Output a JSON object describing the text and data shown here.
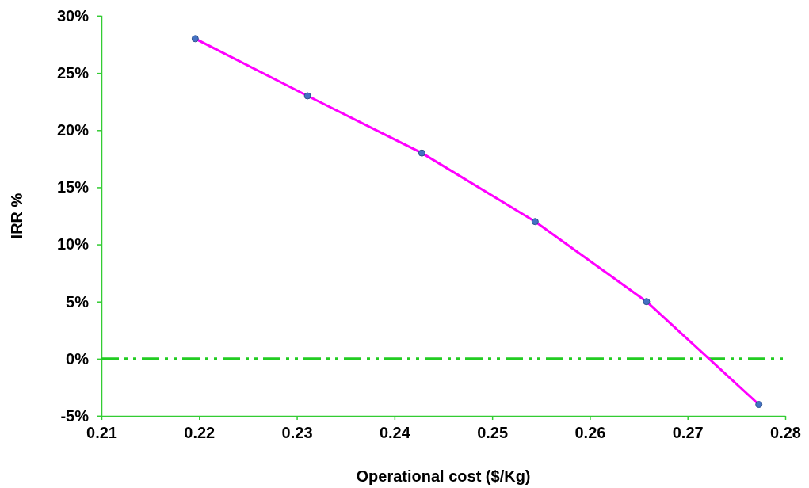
{
  "chart_data": {
    "type": "line",
    "xlabel": "Operational cost ($/Kg)",
    "ylabel": "IRR %",
    "x": [
      0.2196,
      0.2311,
      0.2428,
      0.2544,
      0.2658,
      0.2773
    ],
    "series": [
      {
        "color": "#ff00ff",
        "values": [
          28,
          23,
          18,
          12,
          5,
          -4
        ],
        "marker": "none"
      },
      {
        "type": "scatter",
        "color": "#4472c4",
        "values": [
          28,
          23,
          18,
          12,
          5,
          -4
        ]
      }
    ],
    "marker": "circle",
    "line_style": "solid",
    "grid": false,
    "xlim": [
      0.21,
      0.28
    ],
    "xticks": [
      {
        "value": 0.21,
        "label": "0.21"
      },
      {
        "value": 0.22,
        "label": "0.22"
      },
      {
        "value": 0.23,
        "label": "0.23"
      },
      {
        "value": 0.24,
        "label": "0.24"
      },
      {
        "value": 0.25,
        "label": "0.25"
      },
      {
        "value": 0.26,
        "label": "0.26"
      },
      {
        "value": 0.27,
        "label": "0.27"
      },
      {
        "value": 0.28,
        "label": "0.28"
      }
    ],
    "ylim": [
      -5,
      30
    ],
    "yticks": [
      {
        "value": -5,
        "label": "-5%"
      },
      {
        "value": 0,
        "label": "0%"
      },
      {
        "value": 5,
        "label": "5%"
      },
      {
        "value": 10,
        "label": "10%"
      },
      {
        "value": 15,
        "label": "15%"
      },
      {
        "value": 20,
        "label": "20%"
      },
      {
        "value": 25,
        "label": "25%"
      },
      {
        "value": 30,
        "label": "30%"
      }
    ],
    "ref_lines": [
      {
        "axis": "y",
        "value": 0,
        "color": "#22cc22",
        "line_style": "dashed"
      }
    ]
  }
}
